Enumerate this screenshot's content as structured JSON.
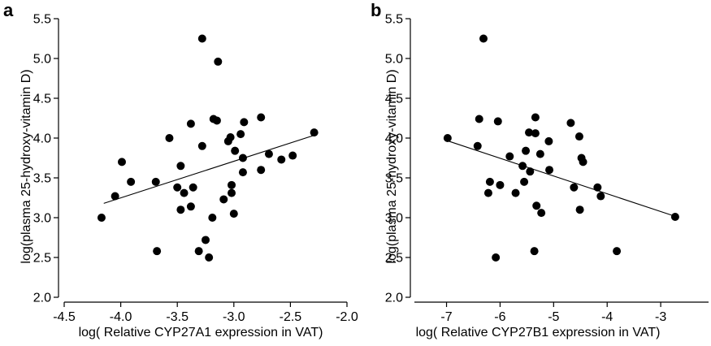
{
  "chart_data": [
    {
      "type": "scatter",
      "panel_label": "a",
      "title": "",
      "xlabel": "log( Relative CYP27A1 expression in VAT)",
      "ylabel": "log(plasma 25-hydroxy-vitamin D)",
      "xlim": [
        -4.5,
        -2.0
      ],
      "ylim": [
        2.0,
        5.5
      ],
      "xticks": [
        -4.5,
        -4.0,
        -3.5,
        -3.0,
        -2.5,
        -2.0
      ],
      "xtick_labels": [
        "-4.5",
        "-4.0",
        "-3.5",
        "-3.0",
        "-2.5",
        "-2.0"
      ],
      "yticks": [
        2.0,
        2.5,
        3.0,
        3.5,
        4.0,
        4.5,
        5.0,
        5.5
      ],
      "ytick_labels": [
        "2.0",
        "2.5",
        "3.0",
        "3.5",
        "4.0",
        "4.5",
        "5.0",
        "5.5"
      ],
      "grid": false,
      "points": [
        {
          "x": -4.17,
          "y": 3.0
        },
        {
          "x": -4.05,
          "y": 3.27
        },
        {
          "x": -3.99,
          "y": 3.7
        },
        {
          "x": -3.91,
          "y": 3.45
        },
        {
          "x": -3.69,
          "y": 3.45
        },
        {
          "x": -3.68,
          "y": 2.58
        },
        {
          "x": -3.57,
          "y": 4.0
        },
        {
          "x": -3.5,
          "y": 3.38
        },
        {
          "x": -3.47,
          "y": 3.65
        },
        {
          "x": -3.47,
          "y": 3.1
        },
        {
          "x": -3.44,
          "y": 3.31
        },
        {
          "x": -3.38,
          "y": 3.14
        },
        {
          "x": -3.38,
          "y": 4.18
        },
        {
          "x": -3.36,
          "y": 3.38
        },
        {
          "x": -3.31,
          "y": 2.58
        },
        {
          "x": -3.28,
          "y": 3.9
        },
        {
          "x": -3.28,
          "y": 5.25
        },
        {
          "x": -3.25,
          "y": 2.72
        },
        {
          "x": -3.22,
          "y": 2.5
        },
        {
          "x": -3.19,
          "y": 3.0
        },
        {
          "x": -3.18,
          "y": 4.24
        },
        {
          "x": -3.15,
          "y": 4.22
        },
        {
          "x": -3.14,
          "y": 4.96
        },
        {
          "x": -3.09,
          "y": 3.23
        },
        {
          "x": -3.05,
          "y": 3.96
        },
        {
          "x": -3.03,
          "y": 4.01
        },
        {
          "x": -3.02,
          "y": 3.31
        },
        {
          "x": -3.02,
          "y": 3.41
        },
        {
          "x": -3.0,
          "y": 3.05
        },
        {
          "x": -2.99,
          "y": 3.84
        },
        {
          "x": -2.94,
          "y": 4.05
        },
        {
          "x": -2.92,
          "y": 3.57
        },
        {
          "x": -2.92,
          "y": 3.75
        },
        {
          "x": -2.91,
          "y": 4.2
        },
        {
          "x": -2.76,
          "y": 3.6
        },
        {
          "x": -2.76,
          "y": 4.26
        },
        {
          "x": -2.69,
          "y": 3.8
        },
        {
          "x": -2.58,
          "y": 3.73
        },
        {
          "x": -2.48,
          "y": 3.78
        },
        {
          "x": -2.29,
          "y": 4.07
        }
      ],
      "fit_line": {
        "x": [
          -4.15,
          -2.3
        ],
        "y": [
          3.18,
          4.03
        ]
      }
    },
    {
      "type": "scatter",
      "panel_label": "b",
      "title": "",
      "xlabel": "log( Relative CYP27B1 expression in VAT)",
      "ylabel": "log(plasma 25-hydroxy-vitamin D)",
      "xlim": [
        -7.6,
        -2.0
      ],
      "ylim": [
        2.0,
        5.5
      ],
      "xticks": [
        -7,
        -6,
        -5,
        -4,
        -3
      ],
      "xtick_labels": [
        "-7",
        "-6",
        "-5",
        "-4",
        "-3"
      ],
      "yticks": [
        2.0,
        2.5,
        3.0,
        3.5,
        4.0,
        4.5,
        5.0,
        5.5
      ],
      "ytick_labels": [
        "2.0",
        "2.5",
        "3.0",
        "3.5",
        "4.0",
        "4.5",
        "5.0",
        "5.5"
      ],
      "grid": false,
      "points": [
        {
          "x": -6.98,
          "y": 4.0
        },
        {
          "x": -6.42,
          "y": 3.9
        },
        {
          "x": -6.39,
          "y": 4.24
        },
        {
          "x": -6.31,
          "y": 5.25
        },
        {
          "x": -6.22,
          "y": 3.31
        },
        {
          "x": -6.19,
          "y": 3.45
        },
        {
          "x": -6.08,
          "y": 2.5
        },
        {
          "x": -6.04,
          "y": 4.21
        },
        {
          "x": -6.0,
          "y": 3.41
        },
        {
          "x": -5.82,
          "y": 3.77
        },
        {
          "x": -5.71,
          "y": 3.31
        },
        {
          "x": -5.58,
          "y": 3.65
        },
        {
          "x": -5.55,
          "y": 3.45
        },
        {
          "x": -5.52,
          "y": 3.84
        },
        {
          "x": -5.46,
          "y": 4.07
        },
        {
          "x": -5.44,
          "y": 3.58
        },
        {
          "x": -5.36,
          "y": 2.58
        },
        {
          "x": -5.34,
          "y": 4.26
        },
        {
          "x": -5.34,
          "y": 4.06
        },
        {
          "x": -5.32,
          "y": 3.15
        },
        {
          "x": -5.25,
          "y": 3.8
        },
        {
          "x": -5.23,
          "y": 3.06
        },
        {
          "x": -5.09,
          "y": 3.96
        },
        {
          "x": -5.08,
          "y": 3.6
        },
        {
          "x": -4.68,
          "y": 4.19
        },
        {
          "x": -4.62,
          "y": 3.38
        },
        {
          "x": -4.52,
          "y": 4.02
        },
        {
          "x": -4.51,
          "y": 3.1
        },
        {
          "x": -4.48,
          "y": 3.75
        },
        {
          "x": -4.45,
          "y": 3.7
        },
        {
          "x": -4.18,
          "y": 3.38
        },
        {
          "x": -4.12,
          "y": 3.27
        },
        {
          "x": -3.82,
          "y": 2.58
        },
        {
          "x": -2.73,
          "y": 3.01
        }
      ],
      "fit_line": {
        "x": [
          -7.0,
          -2.7
        ],
        "y": [
          3.97,
          3.01
        ]
      }
    }
  ]
}
